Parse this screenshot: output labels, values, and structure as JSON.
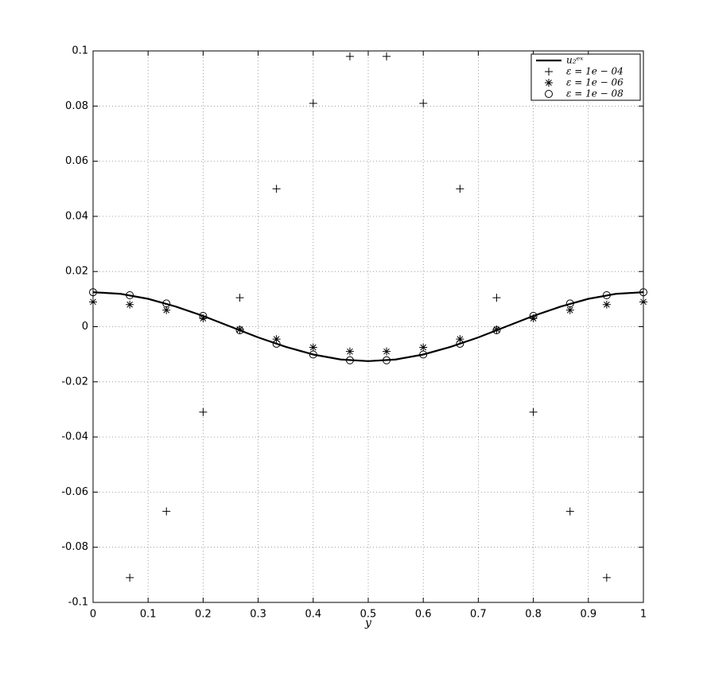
{
  "chart_data": {
    "type": "line",
    "x_label": "y",
    "xlim": [
      0,
      1
    ],
    "ylim": [
      -0.1,
      0.1
    ],
    "xticks": [
      0,
      0.1,
      0.2,
      0.3,
      0.4,
      0.5,
      0.6,
      0.7,
      0.8,
      0.9,
      1
    ],
    "yticks": [
      -0.1,
      -0.08,
      -0.06,
      -0.04,
      -0.02,
      0,
      0.02,
      0.04,
      0.06,
      0.08,
      0.1
    ],
    "grid": true,
    "legend": "top-right",
    "series": [
      {
        "name": "u₂ᵉˣ",
        "color": "#000000",
        "marker": "none",
        "x": [
          0,
          0.05,
          0.1,
          0.15,
          0.2,
          0.25,
          0.3,
          0.35,
          0.4,
          0.45,
          0.5,
          0.55,
          0.6,
          0.65,
          0.7,
          0.75,
          0.8,
          0.85,
          0.9,
          0.95,
          1
        ],
        "values": [
          0.0125,
          0.0119,
          0.0101,
          0.0073,
          0.0039,
          0,
          -0.0039,
          -0.0073,
          -0.0101,
          -0.0119,
          -0.0125,
          -0.0119,
          -0.0101,
          -0.0073,
          -0.0039,
          0,
          0.0039,
          0.0073,
          0.0101,
          0.0119,
          0.0125
        ]
      },
      {
        "name": "ε = 1e − 04",
        "color": "#000000",
        "marker": "plus",
        "x": [
          0.0667,
          0.1333,
          0.2,
          0.2667,
          0.3333,
          0.4,
          0.4667,
          0.5333,
          0.6,
          0.6667,
          0.7333,
          0.8,
          0.8667,
          0.9333
        ],
        "values": [
          -0.091,
          -0.067,
          -0.031,
          0.0105,
          0.05,
          0.081,
          0.098,
          0.098,
          0.081,
          0.05,
          0.0105,
          -0.031,
          -0.067,
          -0.091
        ]
      },
      {
        "name": "ε = 1e − 06",
        "color": "#000000",
        "marker": "star",
        "x": [
          0,
          0.0667,
          0.1333,
          0.2,
          0.2667,
          0.3333,
          0.4,
          0.4667,
          0.5333,
          0.6,
          0.6667,
          0.7333,
          0.8,
          0.8667,
          0.9333,
          1
        ],
        "values": [
          0.009,
          0.008,
          0.006,
          0.003,
          -0.001,
          -0.0045,
          -0.0075,
          -0.009,
          -0.009,
          -0.0075,
          -0.0045,
          -0.001,
          0.003,
          0.006,
          0.008,
          0.009
        ]
      },
      {
        "name": "ε = 1e − 08",
        "color": "#000000",
        "marker": "circle",
        "x": [
          0,
          0.0667,
          0.1333,
          0.2,
          0.2667,
          0.3333,
          0.4,
          0.4667,
          0.5333,
          0.6,
          0.6667,
          0.7333,
          0.8,
          0.8667,
          0.9333,
          1
        ],
        "values": [
          0.0125,
          0.0114,
          0.0084,
          0.0039,
          -0.0013,
          -0.0062,
          -0.0101,
          -0.0122,
          -0.0122,
          -0.0101,
          -0.0062,
          -0.0013,
          0.0039,
          0.0084,
          0.0114,
          0.0125
        ]
      }
    ]
  }
}
